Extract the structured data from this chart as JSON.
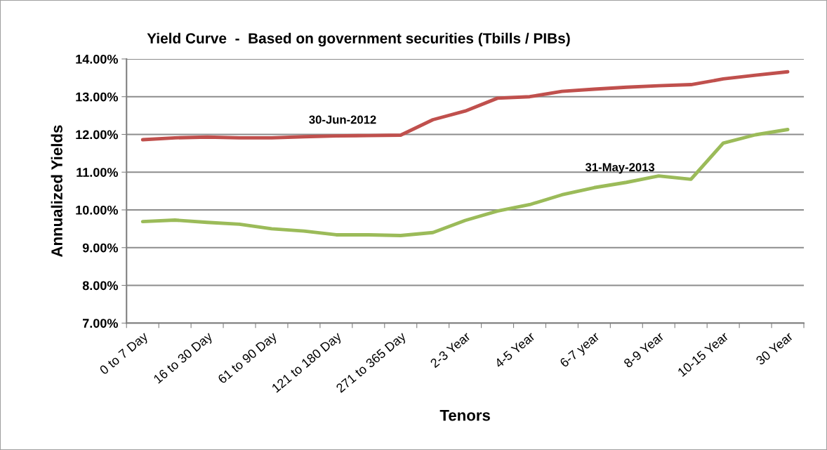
{
  "chart_data": {
    "type": "line",
    "title": "Yield Curve  -  Based on government securities (Tbills / PIBs)",
    "xlabel": "Tenors",
    "ylabel": "Annualized Yields",
    "categories": [
      "0 to 7 Day",
      null,
      "16 to 30 Day",
      null,
      "61 to 90 Day",
      null,
      "121 to 180 Day",
      null,
      "271 to 365 Day",
      null,
      "2-3 Year",
      null,
      "4-5 Year",
      null,
      "6-7 year",
      null,
      "8-9 Year",
      null,
      "10-15 Year",
      null,
      "30 Year"
    ],
    "series": [
      {
        "name": "30-Jun-2012",
        "color": "#c0504d",
        "values": [
          11.86,
          11.91,
          11.93,
          11.91,
          11.91,
          11.94,
          11.96,
          11.97,
          11.98,
          12.39,
          12.62,
          12.96,
          13.0,
          13.14,
          13.2,
          13.25,
          13.29,
          13.32,
          13.47,
          13.57,
          13.66
        ]
      },
      {
        "name": "31-May-2013",
        "color": "#9bbb59",
        "values": [
          9.69,
          9.73,
          9.67,
          9.62,
          9.5,
          9.44,
          9.34,
          9.34,
          9.32,
          9.4,
          9.72,
          9.97,
          10.14,
          10.4,
          10.59,
          10.73,
          10.9,
          10.81,
          11.77,
          11.99,
          12.13
        ]
      }
    ],
    "ylim": [
      7,
      14
    ],
    "yticks": [
      {
        "value": 7,
        "label": "7.00%"
      },
      {
        "value": 8,
        "label": "8.00%"
      },
      {
        "value": 9,
        "label": "9.00%"
      },
      {
        "value": 10,
        "label": "10.00%"
      },
      {
        "value": 11,
        "label": "11.00%"
      },
      {
        "value": 12,
        "label": "12.00%"
      },
      {
        "value": 13,
        "label": "13.00%"
      },
      {
        "value": 14,
        "label": "14.00%"
      }
    ],
    "grid": "y",
    "legend": false,
    "marker": "none",
    "line_style": "solid"
  }
}
